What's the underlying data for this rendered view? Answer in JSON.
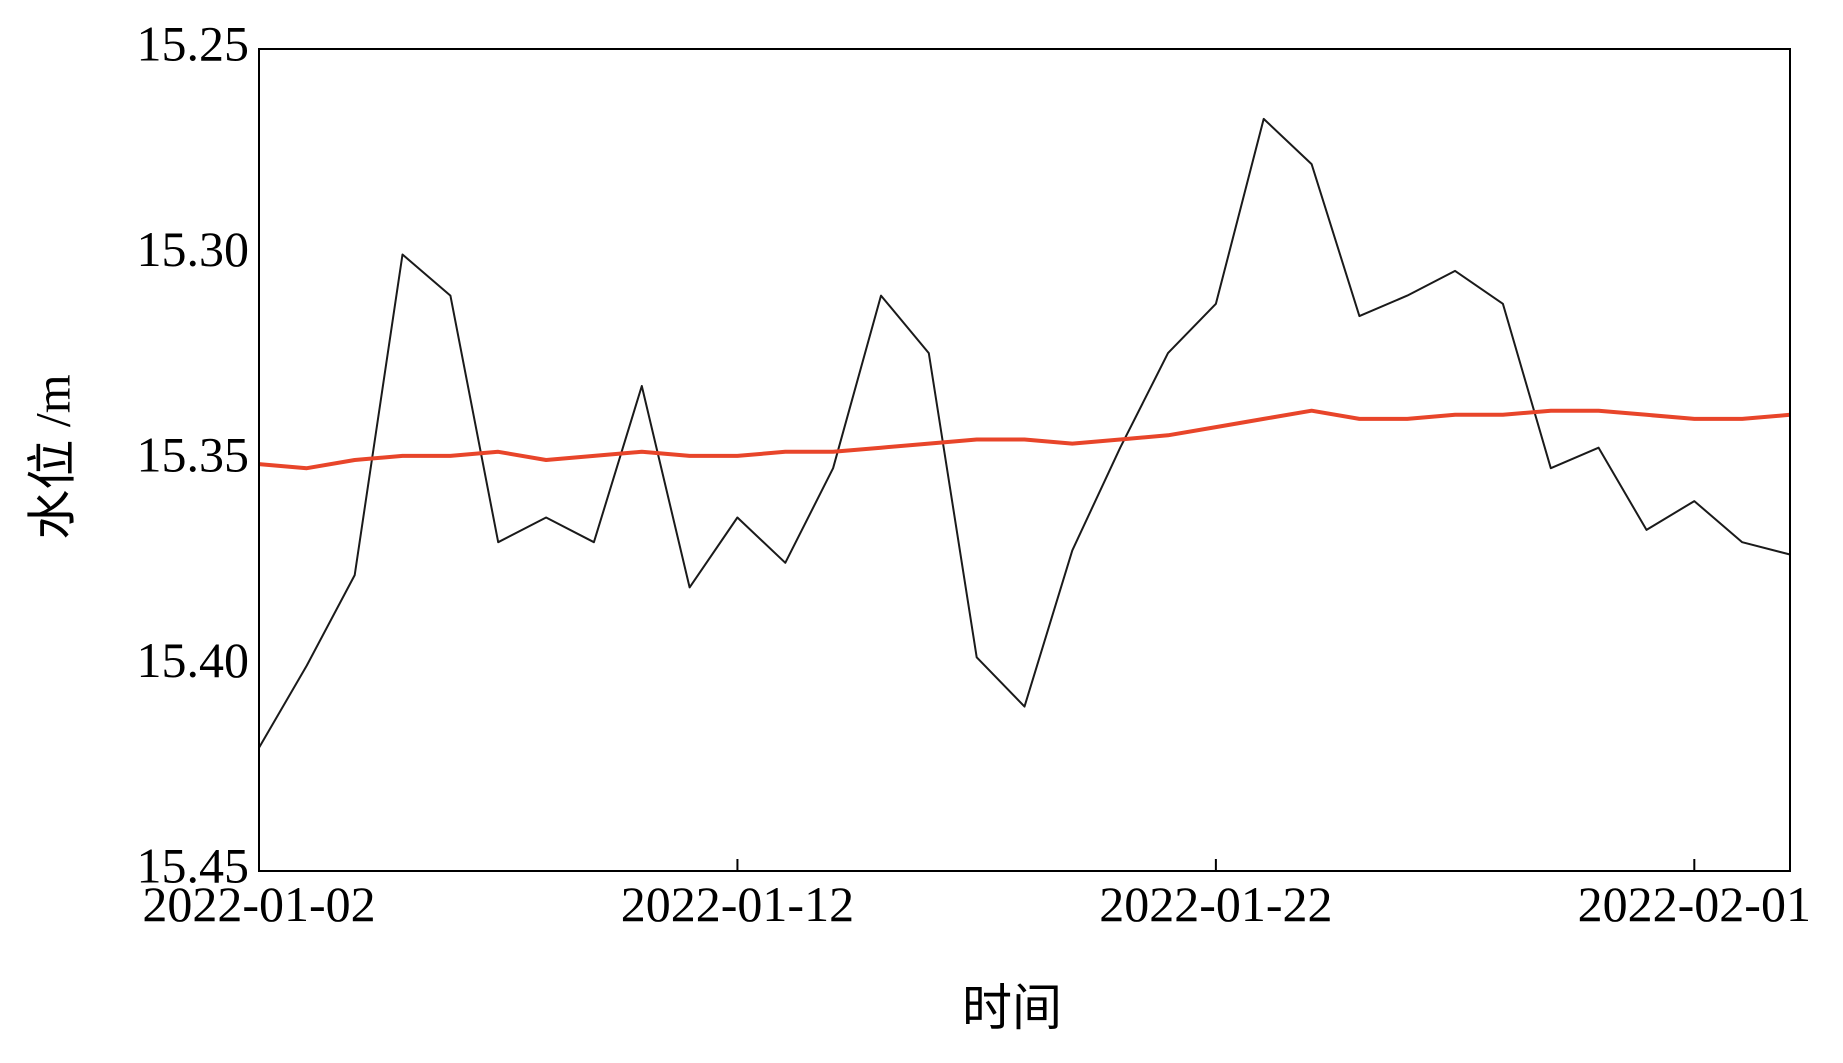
{
  "chart_data": {
    "type": "line",
    "x_label": "时间",
    "y_label": "水位 /m",
    "x": [
      "2022-01-02",
      "2022-01-03",
      "2022-01-04",
      "2022-01-05",
      "2022-01-06",
      "2022-01-07",
      "2022-01-08",
      "2022-01-09",
      "2022-01-10",
      "2022-01-11",
      "2022-01-12",
      "2022-01-13",
      "2022-01-14",
      "2022-01-15",
      "2022-01-16",
      "2022-01-17",
      "2022-01-18",
      "2022-01-19",
      "2022-01-20",
      "2022-01-21",
      "2022-01-22",
      "2022-01-23",
      "2022-01-24",
      "2022-01-25",
      "2022-01-26",
      "2022-01-27",
      "2022-01-28",
      "2022-01-29",
      "2022-01-30",
      "2022-01-31",
      "2022-02-01",
      "2022-02-02",
      "2022-02-03"
    ],
    "series": [
      {
        "color": "#1a1a1a",
        "values": [
          15.42,
          15.4,
          15.378,
          15.3,
          15.31,
          15.37,
          15.364,
          15.37,
          15.332,
          15.381,
          15.364,
          15.375,
          15.352,
          15.31,
          15.324,
          15.398,
          15.41,
          15.372,
          15.347,
          15.324,
          15.312,
          15.267,
          15.278,
          15.315,
          15.31,
          15.304,
          15.312,
          15.352,
          15.347,
          15.367,
          15.36,
          15.37,
          15.373
        ]
      },
      {
        "color": "#e8452a",
        "values": [
          15.351,
          15.352,
          15.35,
          15.349,
          15.349,
          15.348,
          15.35,
          15.349,
          15.348,
          15.349,
          15.349,
          15.348,
          15.348,
          15.347,
          15.346,
          15.345,
          15.345,
          15.346,
          15.345,
          15.344,
          15.342,
          15.34,
          15.338,
          15.34,
          15.34,
          15.339,
          15.339,
          15.338,
          15.338,
          15.339,
          15.34,
          15.34,
          15.339
        ]
      }
    ],
    "xlim": [
      "2022-01-02",
      "2022-02-03"
    ],
    "xticks": [
      "2022-01-02",
      "2022-01-12",
      "2022-01-22",
      "2022-02-01"
    ],
    "ylim": [
      15.45,
      15.25
    ],
    "yticks": [
      {
        "value": 15.45,
        "label": "15.45"
      },
      {
        "value": 15.4,
        "label": "15.40"
      },
      {
        "value": 15.35,
        "label": "15.35"
      },
      {
        "value": 15.3,
        "label": "15.30"
      },
      {
        "value": 15.25,
        "label": "15.25"
      }
    ]
  }
}
